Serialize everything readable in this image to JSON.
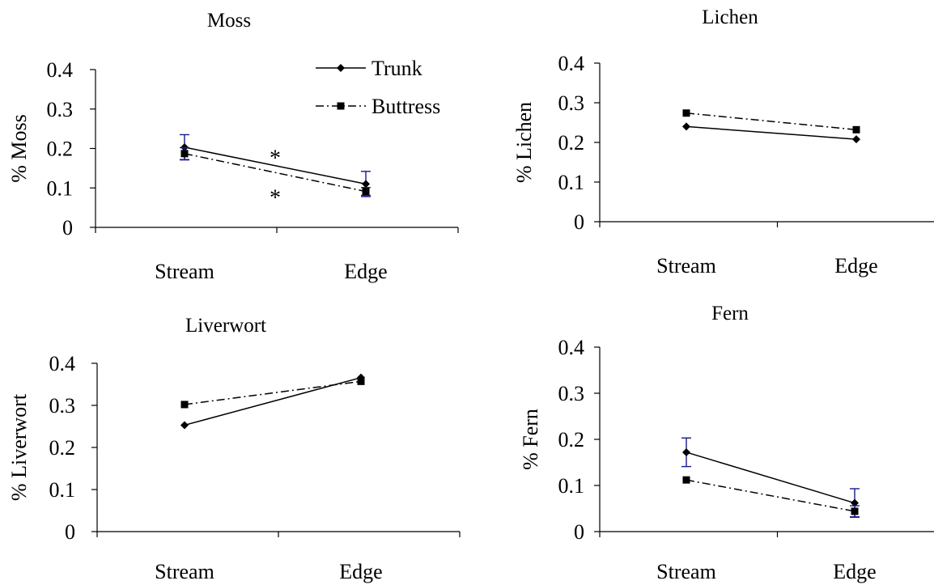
{
  "legend": {
    "position": "top-right of first panel",
    "entries": [
      "Trunk",
      "Buttress"
    ]
  },
  "colors": {
    "series_line": "#000000",
    "error_bar": "#1a1a8c",
    "axis": "#000000"
  },
  "chart_data": [
    {
      "type": "line",
      "title": "Moss",
      "ylabel": "% Moss",
      "xlabel": "",
      "categories": [
        "Stream",
        "Edge"
      ],
      "ylim": [
        0,
        0.4
      ],
      "yticks": [
        "0",
        "0.1",
        "0.2",
        "0.3",
        "0.4"
      ],
      "grid": false,
      "series": [
        {
          "name": "Trunk",
          "values": [
            0.203,
            0.11
          ],
          "error": [
            0.032,
            0.032
          ],
          "marker": "diamond",
          "dash": "solid"
        },
        {
          "name": "Buttress",
          "values": [
            0.187,
            0.091
          ],
          "error": [
            0.015,
            0.01
          ],
          "marker": "square",
          "dash": "dashdot"
        }
      ],
      "annotations": [
        {
          "text": "*",
          "x": 0.5,
          "y": 0.175
        },
        {
          "text": "*",
          "x": 0.5,
          "y": 0.075
        }
      ]
    },
    {
      "type": "line",
      "title": "Lichen",
      "ylabel": "% Lichen",
      "xlabel": "",
      "categories": [
        "Stream",
        "Edge"
      ],
      "ylim": [
        0,
        0.4
      ],
      "yticks": [
        "0",
        "0.1",
        "0.2",
        "0.3",
        "0.4"
      ],
      "grid": false,
      "series": [
        {
          "name": "Trunk",
          "values": [
            0.24,
            0.208
          ],
          "marker": "diamond",
          "dash": "solid"
        },
        {
          "name": "Buttress",
          "values": [
            0.274,
            0.232
          ],
          "marker": "square",
          "dash": "dashdot"
        }
      ]
    },
    {
      "type": "line",
      "title": "Liverwort",
      "ylabel": "% Liverwort",
      "xlabel": "",
      "categories": [
        "Stream",
        "Edge"
      ],
      "ylim": [
        0,
        0.4
      ],
      "yticks": [
        "0",
        "0.1",
        "0.2",
        "0.3",
        "0.4"
      ],
      "grid": false,
      "series": [
        {
          "name": "Trunk",
          "values": [
            0.253,
            0.366
          ],
          "marker": "diamond",
          "dash": "solid"
        },
        {
          "name": "Buttress",
          "values": [
            0.302,
            0.357
          ],
          "marker": "square",
          "dash": "dashdot"
        }
      ]
    },
    {
      "type": "line",
      "title": "Fern",
      "ylabel": "% Fern",
      "xlabel": "",
      "categories": [
        "Stream",
        "Edge"
      ],
      "ylim": [
        0,
        0.4
      ],
      "yticks": [
        "0",
        "0.1",
        "0.2",
        "0.3",
        "0.4"
      ],
      "grid": false,
      "series": [
        {
          "name": "Trunk",
          "values": [
            0.172,
            0.062
          ],
          "error": [
            0.031,
            0.031
          ],
          "marker": "diamond",
          "dash": "solid"
        },
        {
          "name": "Buttress",
          "values": [
            0.112,
            0.044
          ],
          "error": [
            0,
            0.012
          ],
          "marker": "square",
          "dash": "dashdot"
        }
      ]
    }
  ]
}
